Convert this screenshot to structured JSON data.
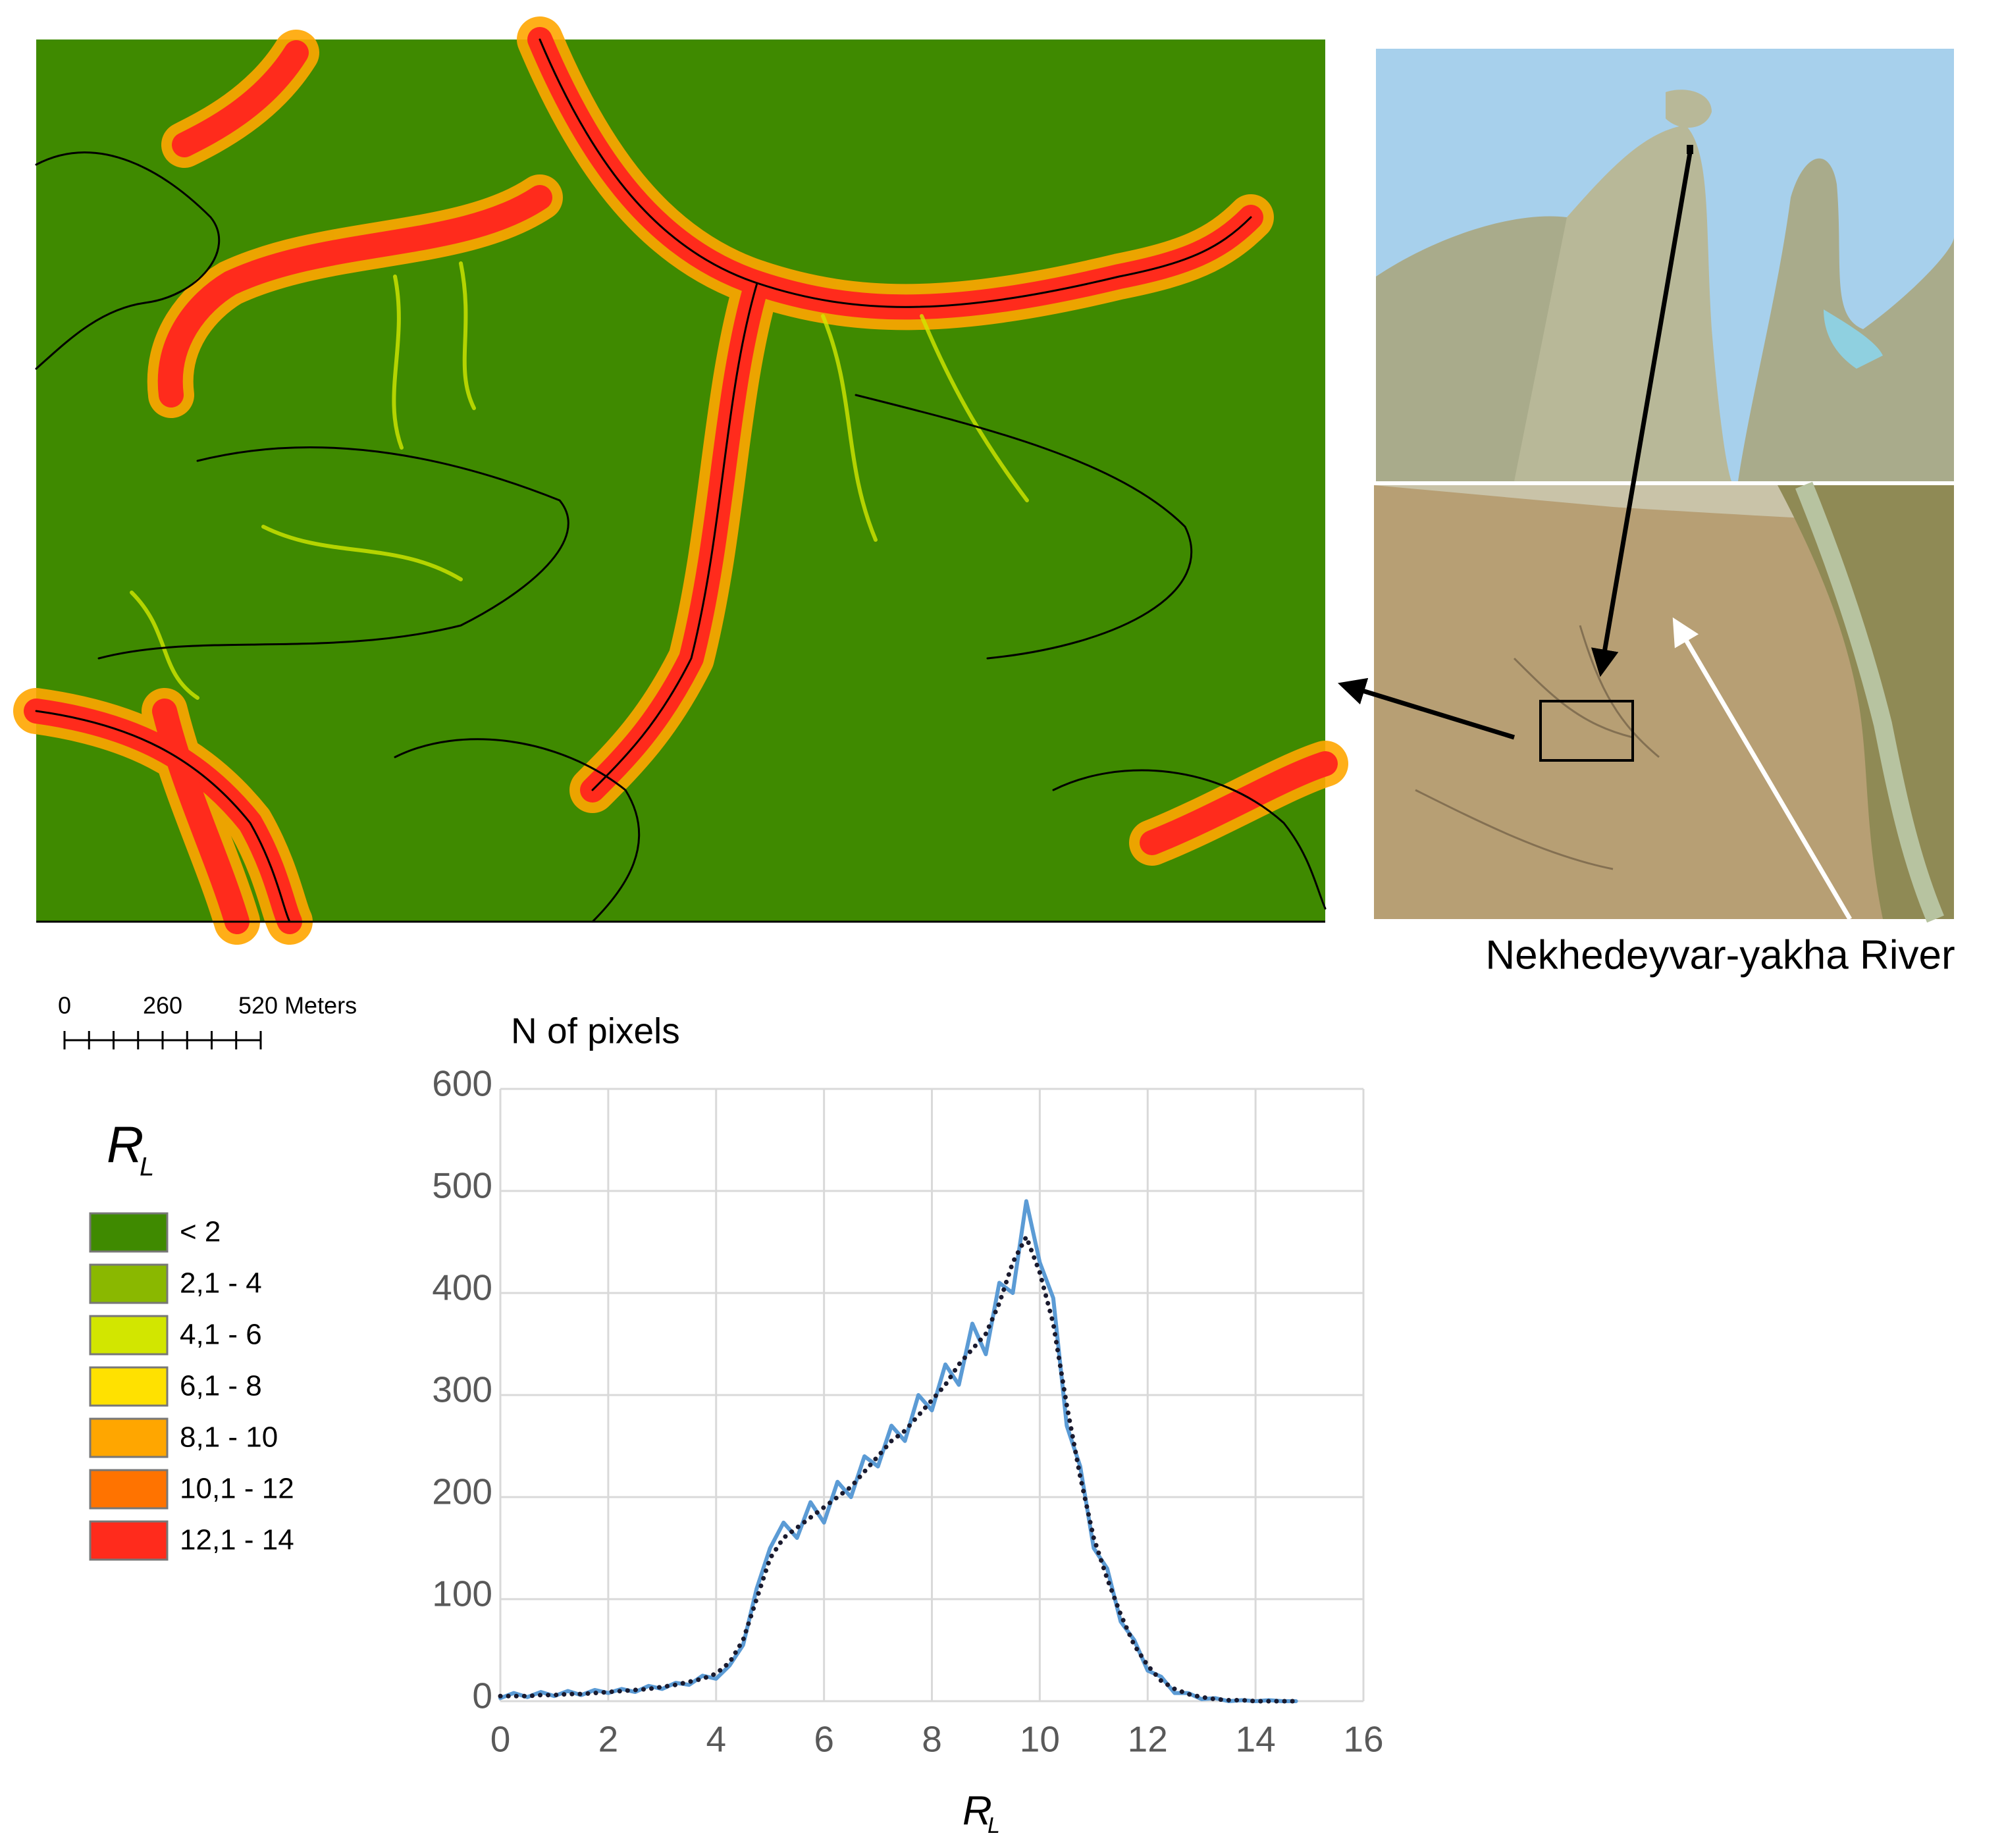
{
  "chart_data": {
    "type": "line",
    "y_label": "N of pixels",
    "x_label": "R",
    "x_label_sub": "L",
    "x": [
      0,
      0.25,
      0.5,
      0.75,
      1,
      1.25,
      1.5,
      1.75,
      2,
      2.25,
      2.5,
      2.75,
      3,
      3.25,
      3.5,
      3.75,
      4,
      4.25,
      4.5,
      4.75,
      5,
      5.25,
      5.5,
      5.75,
      6,
      6.25,
      6.5,
      6.75,
      7,
      7.25,
      7.5,
      7.75,
      8,
      8.25,
      8.5,
      8.75,
      9,
      9.25,
      9.5,
      9.75,
      10,
      10.25,
      10.5,
      10.75,
      11,
      11.25,
      11.5,
      11.75,
      12,
      12.25,
      12.5,
      12.75,
      13,
      13.25,
      13.5,
      13.75,
      14,
      14.25,
      14.5,
      14.75
    ],
    "series": [
      {
        "color": "#5b9bd5",
        "values": [
          3,
          8,
          4,
          9,
          5,
          10,
          6,
          11,
          8,
          12,
          9,
          15,
          12,
          18,
          16,
          25,
          22,
          35,
          55,
          110,
          150,
          175,
          160,
          195,
          175,
          215,
          200,
          240,
          230,
          270,
          255,
          300,
          285,
          330,
          310,
          370,
          340,
          410,
          400,
          490,
          430,
          395,
          270,
          230,
          150,
          130,
          78,
          60,
          30,
          24,
          8,
          8,
          2,
          3,
          0,
          1,
          0,
          1,
          0,
          0
        ]
      },
      {
        "color": "#1a1a2e",
        "values": [
          5,
          5,
          5,
          6,
          6,
          7,
          7,
          8,
          9,
          10,
          11,
          12,
          14,
          16,
          19,
          22,
          27,
          38,
          60,
          100,
          140,
          160,
          170,
          180,
          190,
          200,
          210,
          225,
          240,
          255,
          265,
          280,
          295,
          310,
          330,
          345,
          360,
          390,
          430,
          455,
          420,
          370,
          290,
          220,
          160,
          120,
          85,
          55,
          35,
          20,
          12,
          7,
          4,
          2,
          1,
          1,
          0,
          0,
          0,
          0
        ]
      }
    ],
    "xlim": [
      0,
      16
    ],
    "xticks": [
      0,
      2,
      4,
      6,
      8,
      10,
      12,
      14,
      16
    ],
    "ylim": [
      0,
      600
    ],
    "yticks": [
      0,
      100,
      200,
      300,
      400,
      500,
      600
    ],
    "grid": true
  },
  "map_legend": {
    "title": "R",
    "title_sub": "L",
    "items": [
      {
        "label": "< 2",
        "color": "#3f8a00"
      },
      {
        "label": "2,1 - 4",
        "color": "#8ab800"
      },
      {
        "label": "4,1 - 6",
        "color": "#d2e600"
      },
      {
        "label": "6,1 - 8",
        "color": "#ffe100"
      },
      {
        "label": "8,1 - 10",
        "color": "#ffa600"
      },
      {
        "label": "10,1 - 12",
        "color": "#ff7300"
      },
      {
        "label": "12,1 - 14",
        "color": "#ff2b1c"
      }
    ]
  },
  "scale_bar": {
    "labels": [
      "0",
      "260",
      "520 Meters"
    ]
  },
  "river_label": "Nekhedeyvar-yakha River"
}
